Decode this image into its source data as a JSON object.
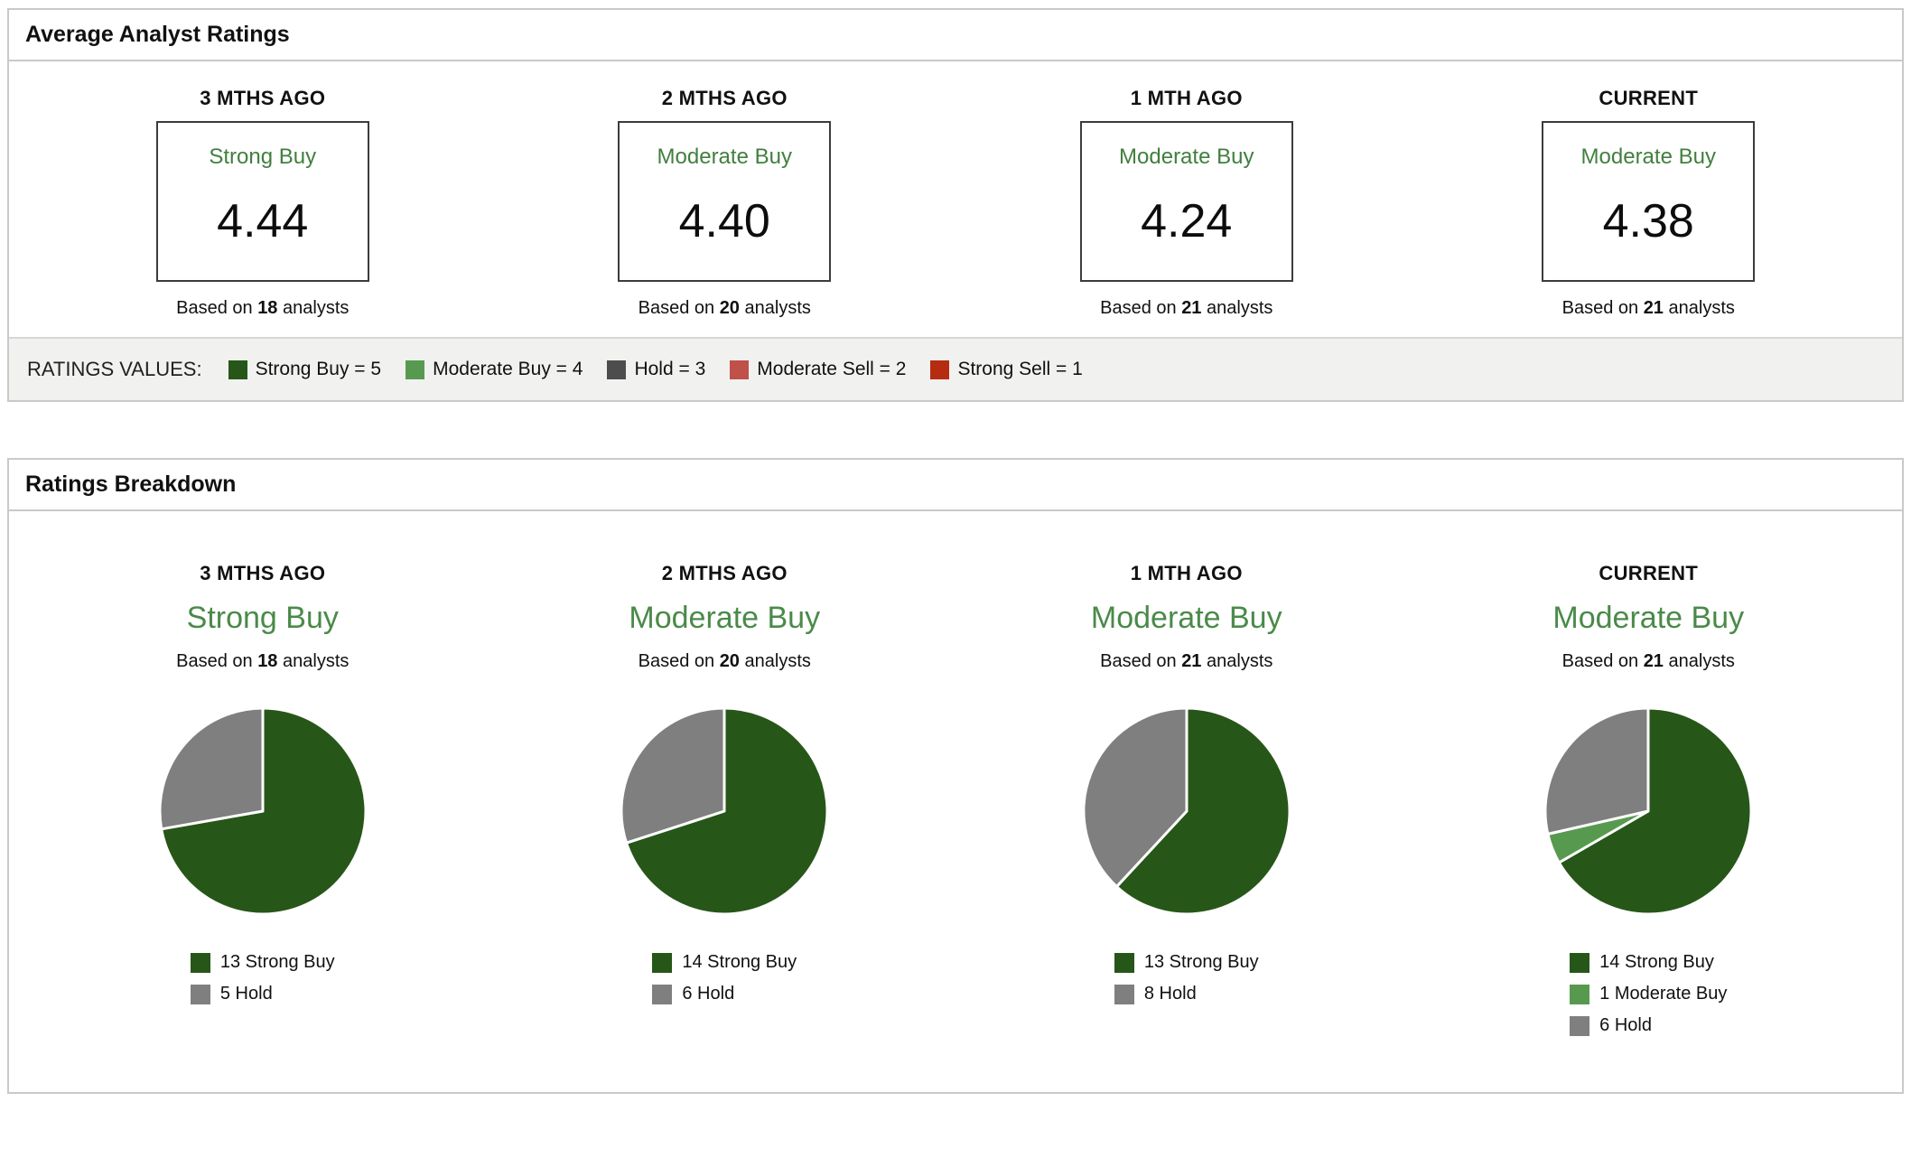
{
  "colors": {
    "strong_buy": "#275619",
    "moderate_buy": "#579a4f",
    "hold_pie": "#7f7f7f",
    "hold_strip": "#4d4d4d",
    "moderate_sell": "#c0504a",
    "strong_sell": "#b62c10",
    "green_text": "#4a8a49",
    "panel_border": "#c9c9c9"
  },
  "panel_avg": {
    "title": "Average Analyst Ratings",
    "columns": [
      {
        "period": "3 MTHS AGO",
        "rating": "Strong Buy",
        "value": "4.44",
        "based_prefix": "Based on",
        "analysts": "18",
        "based_suffix": "analysts"
      },
      {
        "period": "2 MTHS AGO",
        "rating": "Moderate Buy",
        "value": "4.40",
        "based_prefix": "Based on",
        "analysts": "20",
        "based_suffix": "analysts"
      },
      {
        "period": "1 MTH AGO",
        "rating": "Moderate Buy",
        "value": "4.24",
        "based_prefix": "Based on",
        "analysts": "21",
        "based_suffix": "analysts"
      },
      {
        "period": "CURRENT",
        "rating": "Moderate Buy",
        "value": "4.38",
        "based_prefix": "Based on",
        "analysts": "21",
        "based_suffix": "analysts"
      }
    ],
    "legend": {
      "label": "RATINGS VALUES:",
      "items": [
        {
          "label": "Strong Buy = 5",
          "color": "#275619"
        },
        {
          "label": "Moderate Buy = 4",
          "color": "#579a4f"
        },
        {
          "label": "Hold = 3",
          "color": "#4d4d4d"
        },
        {
          "label": "Moderate Sell = 2",
          "color": "#c0504a"
        },
        {
          "label": "Strong Sell = 1",
          "color": "#b62c10"
        }
      ]
    }
  },
  "panel_breakdown": {
    "title": "Ratings Breakdown",
    "columns": [
      {
        "period": "3 MTHS AGO",
        "rating": "Strong Buy",
        "based_prefix": "Based on",
        "analysts": "18",
        "based_suffix": "analysts",
        "slices": [
          {
            "label": "13 Strong Buy",
            "value": 13,
            "color": "#275619"
          },
          {
            "label": "5 Hold",
            "value": 5,
            "color": "#7f7f7f"
          }
        ]
      },
      {
        "period": "2 MTHS AGO",
        "rating": "Moderate Buy",
        "based_prefix": "Based on",
        "analysts": "20",
        "based_suffix": "analysts",
        "slices": [
          {
            "label": "14 Strong Buy",
            "value": 14,
            "color": "#275619"
          },
          {
            "label": "6 Hold",
            "value": 6,
            "color": "#7f7f7f"
          }
        ]
      },
      {
        "period": "1 MTH AGO",
        "rating": "Moderate Buy",
        "based_prefix": "Based on",
        "analysts": "21",
        "based_suffix": "analysts",
        "slices": [
          {
            "label": "13 Strong Buy",
            "value": 13,
            "color": "#275619"
          },
          {
            "label": "8 Hold",
            "value": 8,
            "color": "#7f7f7f"
          }
        ]
      },
      {
        "period": "CURRENT",
        "rating": "Moderate Buy",
        "based_prefix": "Based on",
        "analysts": "21",
        "based_suffix": "analysts",
        "slices": [
          {
            "label": "14 Strong Buy",
            "value": 14,
            "color": "#275619"
          },
          {
            "label": "1 Moderate Buy",
            "value": 1,
            "color": "#579a4f"
          },
          {
            "label": "6 Hold",
            "value": 6,
            "color": "#7f7f7f"
          }
        ]
      }
    ]
  },
  "chart_data": [
    {
      "type": "table",
      "title": "Average Analyst Ratings",
      "categories": [
        "3 MTHS AGO",
        "2 MTHS AGO",
        "1 MTH AGO",
        "CURRENT"
      ],
      "ratings": [
        "Strong Buy",
        "Moderate Buy",
        "Moderate Buy",
        "Moderate Buy"
      ],
      "values": [
        4.44,
        4.4,
        4.24,
        4.38
      ],
      "analyst_counts": [
        18,
        20,
        21,
        21
      ],
      "value_scale": {
        "Strong Buy": 5,
        "Moderate Buy": 4,
        "Hold": 3,
        "Moderate Sell": 2,
        "Strong Sell": 1
      }
    },
    {
      "type": "pie",
      "title": "3 MTHS AGO",
      "subtitle": "Strong Buy",
      "analysts": 18,
      "labels": [
        "Strong Buy",
        "Hold"
      ],
      "values": [
        13,
        5
      ],
      "colors": [
        "#275619",
        "#7f7f7f"
      ],
      "legend_position": "bottom",
      "start_angle": "top",
      "direction": "clockwise"
    },
    {
      "type": "pie",
      "title": "2 MTHS AGO",
      "subtitle": "Moderate Buy",
      "analysts": 20,
      "labels": [
        "Strong Buy",
        "Hold"
      ],
      "values": [
        14,
        6
      ],
      "colors": [
        "#275619",
        "#7f7f7f"
      ],
      "legend_position": "bottom",
      "start_angle": "top",
      "direction": "clockwise"
    },
    {
      "type": "pie",
      "title": "1 MTH AGO",
      "subtitle": "Moderate Buy",
      "analysts": 21,
      "labels": [
        "Strong Buy",
        "Hold"
      ],
      "values": [
        13,
        8
      ],
      "colors": [
        "#275619",
        "#7f7f7f"
      ],
      "legend_position": "bottom",
      "start_angle": "top",
      "direction": "clockwise"
    },
    {
      "type": "pie",
      "title": "CURRENT",
      "subtitle": "Moderate Buy",
      "analysts": 21,
      "labels": [
        "Strong Buy",
        "Moderate Buy",
        "Hold"
      ],
      "values": [
        14,
        1,
        6
      ],
      "colors": [
        "#275619",
        "#579a4f",
        "#7f7f7f"
      ],
      "legend_position": "bottom",
      "start_angle": "top",
      "direction": "clockwise"
    }
  ]
}
